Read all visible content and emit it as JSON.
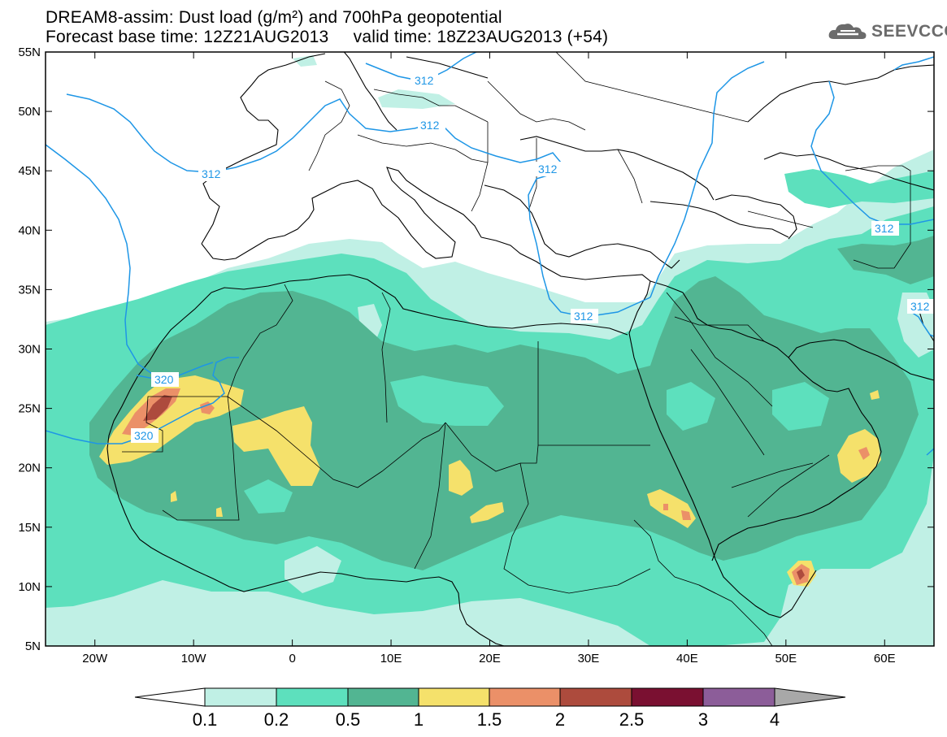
{
  "header": {
    "title_line1": "DREAM8-assim: Dust load (g/m²) and 700hPa geopotential",
    "forecast_base_label": "Forecast base time:",
    "forecast_base_value": "12Z21AUG2013",
    "valid_label": "valid time:",
    "valid_value": "18Z23AUG2013 (+54)"
  },
  "logo": {
    "text": "SEEVCCC",
    "icon": "cloud-icon"
  },
  "map": {
    "lon_range": [
      -25,
      65
    ],
    "lat_range": [
      5,
      55
    ],
    "lat_ticks": [
      "55N",
      "50N",
      "45N",
      "40N",
      "35N",
      "30N",
      "25N",
      "20N",
      "15N",
      "10N",
      "5N"
    ],
    "lon_ticks": [
      "20W",
      "10W",
      "0",
      "10E",
      "20E",
      "30E",
      "40E",
      "50E",
      "60E"
    ],
    "contour_labels": [
      "312",
      "312",
      "312",
      "312",
      "312",
      "312",
      "320",
      "320",
      "312"
    ],
    "colors": {
      "c01": "#c0f0e5",
      "c02": "#5de0bd",
      "c05": "#52b592",
      "c1": "#f5e16b",
      "c15": "#eb9068",
      "c2": "#ad4b3d",
      "c25": "#7a1031",
      "c3": "#8c5d99",
      "c4": "#a8a8a8",
      "contour": "#1e96e6"
    }
  },
  "colorbar": {
    "labels": [
      "0.1",
      "0.2",
      "0.5",
      "1",
      "1.5",
      "2",
      "2.5",
      "3",
      "4"
    ]
  }
}
